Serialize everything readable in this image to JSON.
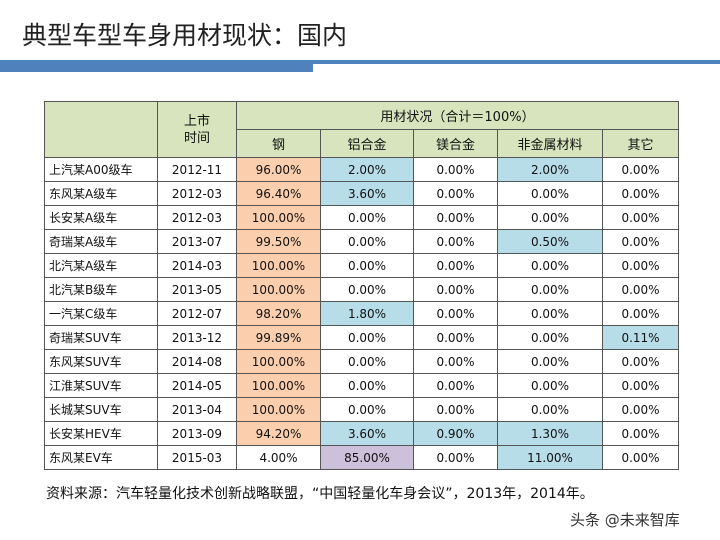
{
  "title": "典型车型车身用材现状：国内",
  "colors": {
    "accent": "#4f81bd",
    "header": "#d7e4bd",
    "steel_highlight": "#fbcfae",
    "highlight_blue": "#b7dde8",
    "highlight_purple": "#ccc0da"
  },
  "table": {
    "header_date": "上市\n时间",
    "header_group": "用材状况（合计＝100%）",
    "columns": [
      "钢",
      "铝合金",
      "镁合金",
      "非金属材料",
      "其它"
    ],
    "rows": [
      {
        "name": "上汽某A00级车",
        "date": "2012-11",
        "values": [
          "96.00%",
          "2.00%",
          "0.00%",
          "2.00%",
          "0.00%"
        ],
        "hl": [
          "o",
          "b",
          "",
          "b",
          ""
        ]
      },
      {
        "name": "东风某A级车",
        "date": "2012-03",
        "values": [
          "96.40%",
          "3.60%",
          "0.00%",
          "0.00%",
          "0.00%"
        ],
        "hl": [
          "o",
          "b",
          "",
          "",
          ""
        ]
      },
      {
        "name": "长安某A级车",
        "date": "2012-03",
        "values": [
          "100.00%",
          "0.00%",
          "0.00%",
          "0.00%",
          "0.00%"
        ],
        "hl": [
          "o",
          "",
          "",
          "",
          ""
        ]
      },
      {
        "name": "奇瑞某A级车",
        "date": "2013-07",
        "values": [
          "99.50%",
          "0.00%",
          "0.00%",
          "0.50%",
          "0.00%"
        ],
        "hl": [
          "o",
          "",
          "",
          "b",
          ""
        ]
      },
      {
        "name": "北汽某A级车",
        "date": "2014-03",
        "values": [
          "100.00%",
          "0.00%",
          "0.00%",
          "0.00%",
          "0.00%"
        ],
        "hl": [
          "o",
          "",
          "",
          "",
          ""
        ]
      },
      {
        "name": "北汽某B级车",
        "date": "2013-05",
        "values": [
          "100.00%",
          "0.00%",
          "0.00%",
          "0.00%",
          "0.00%"
        ],
        "hl": [
          "o",
          "",
          "",
          "",
          ""
        ]
      },
      {
        "name": "一汽某C级车",
        "date": "2012-07",
        "values": [
          "98.20%",
          "1.80%",
          "0.00%",
          "0.00%",
          "0.00%"
        ],
        "hl": [
          "o",
          "b",
          "",
          "",
          ""
        ]
      },
      {
        "name": "奇瑞某SUV车",
        "date": "2013-12",
        "values": [
          "99.89%",
          "0.00%",
          "0.00%",
          "0.00%",
          "0.11%"
        ],
        "hl": [
          "o",
          "",
          "",
          "",
          "b"
        ]
      },
      {
        "name": "东风某SUV车",
        "date": "2014-08",
        "values": [
          "100.00%",
          "0.00%",
          "0.00%",
          "0.00%",
          "0.00%"
        ],
        "hl": [
          "o",
          "",
          "",
          "",
          ""
        ]
      },
      {
        "name": "江淮某SUV车",
        "date": "2014-05",
        "values": [
          "100.00%",
          "0.00%",
          "0.00%",
          "0.00%",
          "0.00%"
        ],
        "hl": [
          "o",
          "",
          "",
          "",
          ""
        ]
      },
      {
        "name": "长城某SUV车",
        "date": "2013-04",
        "values": [
          "100.00%",
          "0.00%",
          "0.00%",
          "0.00%",
          "0.00%"
        ],
        "hl": [
          "o",
          "",
          "",
          "",
          ""
        ]
      },
      {
        "name": "长安某HEV车",
        "date": "2013-09",
        "values": [
          "94.20%",
          "3.60%",
          "0.90%",
          "1.30%",
          "0.00%"
        ],
        "hl": [
          "o",
          "b",
          "b",
          "b",
          ""
        ]
      },
      {
        "name": "东风某EV车",
        "date": "2015-03",
        "values": [
          "4.00%",
          "85.00%",
          "0.00%",
          "11.00%",
          "0.00%"
        ],
        "hl": [
          "",
          "p",
          "",
          "b",
          ""
        ]
      }
    ]
  },
  "source": "资料来源：汽车轻量化技术创新战略联盟，“中国轻量化车身会议”，2013年，2014年。",
  "watermark": "头条 @未来智库"
}
